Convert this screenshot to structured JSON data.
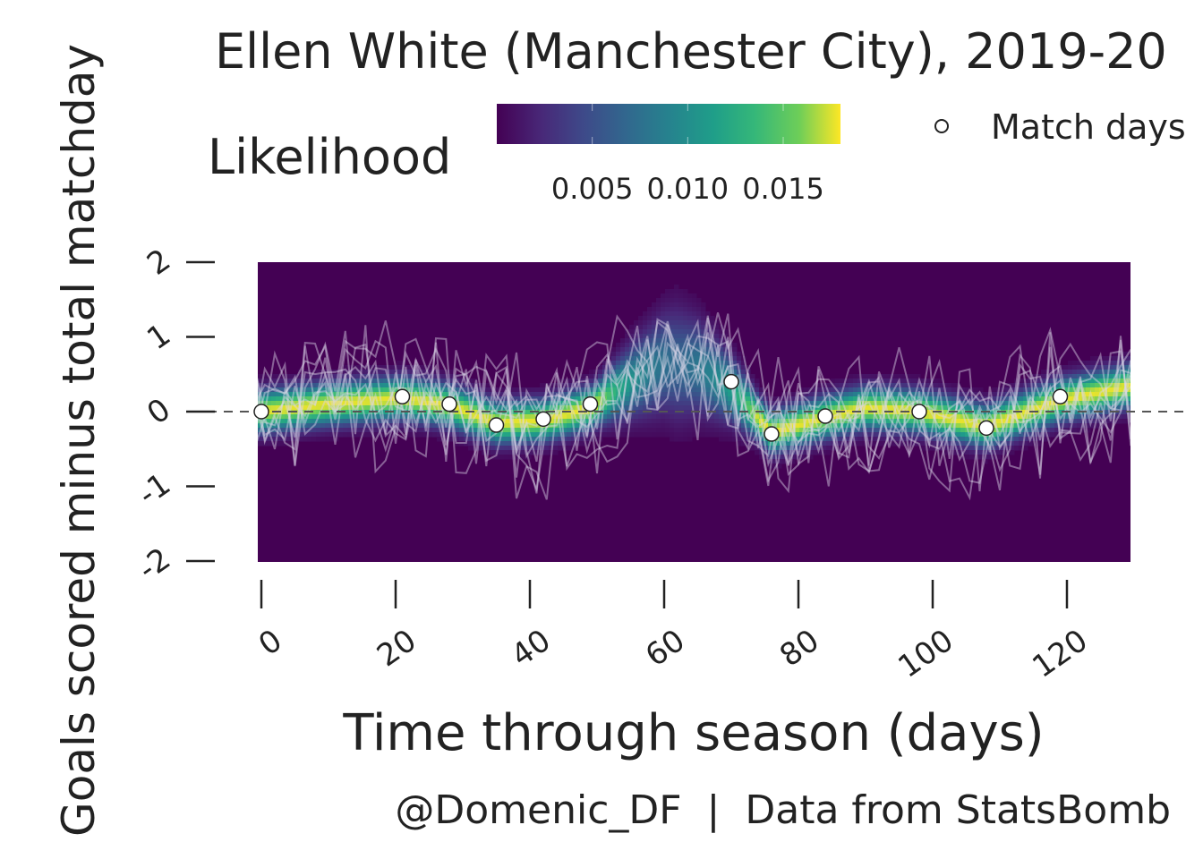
{
  "chart_data": {
    "type": "heatmap",
    "title": "Ellen White (Manchester City), 2019-20",
    "xlabel": "Time through season (days)",
    "ylabel": "Goals scored minus total matchday",
    "caption": "@Domenic_DF  |  Data from StatsBomb",
    "xlim": [
      -2,
      130
    ],
    "ylim": [
      -2,
      2
    ],
    "x_ticks": [
      "0",
      "20",
      "40",
      "60",
      "80",
      "100",
      "120"
    ],
    "y_ticks": [
      "-2",
      "-1",
      "0",
      "1",
      "2"
    ],
    "colorbar": {
      "title": "Likelihood",
      "colormap": "viridis",
      "range": [
        0,
        0.018
      ],
      "tick_labels": [
        "0.005",
        "0.010",
        "0.015"
      ]
    },
    "legend": {
      "label": "Match days",
      "position": "top-right",
      "marker": "open-circle"
    },
    "match_days": {
      "x": [
        0,
        21,
        28,
        35,
        42,
        49,
        70,
        76,
        84,
        98,
        108,
        119
      ],
      "y": [
        0.0,
        0.2,
        0.1,
        -0.18,
        -0.1,
        0.1,
        0.4,
        -0.3,
        -0.06,
        0.0,
        -0.22,
        0.2
      ]
    },
    "posterior_mean_curve": {
      "x": [
        0,
        10,
        21,
        28,
        35,
        42,
        49,
        55,
        60,
        65,
        70,
        76,
        84,
        90,
        98,
        108,
        119,
        130
      ],
      "y": [
        0.0,
        0.1,
        0.18,
        0.08,
        -0.15,
        -0.12,
        0.05,
        0.4,
        0.65,
        0.6,
        0.3,
        -0.28,
        -0.08,
        0.05,
        0.0,
        -0.2,
        0.15,
        0.35
      ]
    },
    "band_width_sd": 0.18,
    "sample_draws": 9,
    "colors": {
      "background": "#ffffff",
      "heat_low": "#440154",
      "heat_high": "#fde725",
      "sample_lines": "#dcd6e8",
      "marker_fill": "#ffffff",
      "marker_edge": "#222222",
      "zero_line": "#555555"
    }
  }
}
